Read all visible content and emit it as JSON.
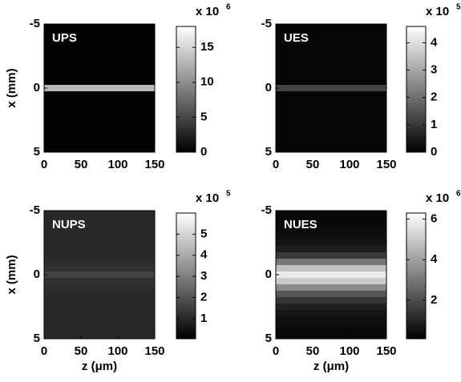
{
  "chart_data": [
    {
      "type": "heatmap",
      "title": "UPS",
      "ylabel": "x (mm)",
      "xlim": [
        0,
        150
      ],
      "xticks": [
        0,
        50,
        100,
        150
      ],
      "ylim": [
        -5,
        5
      ],
      "yticks": [
        -5,
        0,
        5
      ],
      "y_reversed": true,
      "colormap": "gray",
      "clim": [
        0,
        18
      ],
      "cticks": [
        0,
        5,
        10,
        15
      ],
      "colorbar_label": "x 10",
      "colorbar_exponent": 6,
      "profile_x": [
        -5,
        -4.5,
        -4,
        -3.5,
        -3,
        -2.5,
        -2,
        -1.5,
        -1,
        -0.5,
        0,
        0.5,
        1,
        1.5,
        2,
        2.5,
        3,
        3.5,
        4,
        4.5,
        5
      ],
      "profile_values": [
        0.2,
        0.2,
        0.2,
        0.2,
        0.2,
        0.2,
        0.2,
        0.2,
        0.2,
        0.2,
        13,
        0.2,
        0.2,
        0.2,
        0.2,
        0.2,
        0.2,
        0.2,
        0.2,
        0.2,
        0.2
      ]
    },
    {
      "type": "heatmap",
      "title": "UES",
      "xlim": [
        0,
        150
      ],
      "xticks": [
        0,
        50,
        100,
        150
      ],
      "ylim": [
        -5,
        5
      ],
      "yticks": [
        -5,
        0,
        5
      ],
      "y_reversed": true,
      "colormap": "gray",
      "clim": [
        0,
        4.6
      ],
      "cticks": [
        0,
        1,
        2,
        3,
        4
      ],
      "colorbar_label": "x 10",
      "colorbar_exponent": 5,
      "profile_x": [
        -5,
        -4.5,
        -4,
        -3.5,
        -3,
        -2.5,
        -2,
        -1.5,
        -1,
        -0.5,
        0,
        0.5,
        1,
        1.5,
        2,
        2.5,
        3,
        3.5,
        4,
        4.5,
        5
      ],
      "profile_values": [
        0.1,
        0.1,
        0.1,
        0.1,
        0.1,
        0.1,
        0.1,
        0.1,
        0.1,
        0.1,
        1.2,
        0.1,
        0.1,
        0.1,
        0.1,
        0.1,
        0.1,
        0.1,
        0.1,
        0.1,
        0.1
      ]
    },
    {
      "type": "heatmap",
      "title": "NUPS",
      "ylabel": "x (mm)",
      "xlabel": "z (μm)",
      "xlim": [
        0,
        150
      ],
      "xticks": [
        0,
        50,
        100,
        150
      ],
      "ylim": [
        -5,
        5
      ],
      "yticks": [
        -5,
        0,
        5
      ],
      "y_reversed": true,
      "colormap": "gray",
      "clim": [
        0.05,
        6.0
      ],
      "cticks": [
        1,
        2,
        3,
        4,
        5
      ],
      "colorbar_label": "x 10",
      "colorbar_exponent": 5,
      "profile_x": [
        -5,
        -4.5,
        -4,
        -3.5,
        -3,
        -2.5,
        -2,
        -1.5,
        -1,
        -0.5,
        0,
        0.5,
        1,
        1.5,
        2,
        2.5,
        3,
        3.5,
        4,
        4.5,
        5
      ],
      "profile_values": [
        1.0,
        1.0,
        1.0,
        1.0,
        1.0,
        1.0,
        1.0,
        1.0,
        1.1,
        1.2,
        1.6,
        1.2,
        1.1,
        1.0,
        1.0,
        1.0,
        1.0,
        1.0,
        1.0,
        1.0,
        1.0
      ]
    },
    {
      "type": "heatmap",
      "title": "NUES",
      "xlabel": "z (μm)",
      "xlim": [
        0,
        150
      ],
      "xticks": [
        0,
        50,
        100,
        150
      ],
      "ylim": [
        -5,
        5
      ],
      "yticks": [
        -5,
        0,
        5
      ],
      "y_reversed": true,
      "colormap": "gray",
      "clim": [
        0.1,
        6.3
      ],
      "cticks": [
        2,
        4,
        6
      ],
      "colorbar_label": "x 10",
      "colorbar_exponent": 6,
      "profile_x": [
        -5,
        -4.5,
        -4,
        -3.5,
        -3,
        -2.5,
        -2,
        -1.5,
        -1,
        -0.5,
        0,
        0.5,
        1,
        1.5,
        2,
        2.5,
        3,
        3.5,
        4,
        4.5,
        5
      ],
      "profile_values": [
        0.3,
        0.3,
        0.3,
        0.4,
        0.5,
        0.6,
        0.8,
        1.5,
        3,
        4.8,
        5.8,
        5,
        3.5,
        2.2,
        1.4,
        0.9,
        0.6,
        0.5,
        0.4,
        0.3,
        0.3
      ]
    }
  ]
}
